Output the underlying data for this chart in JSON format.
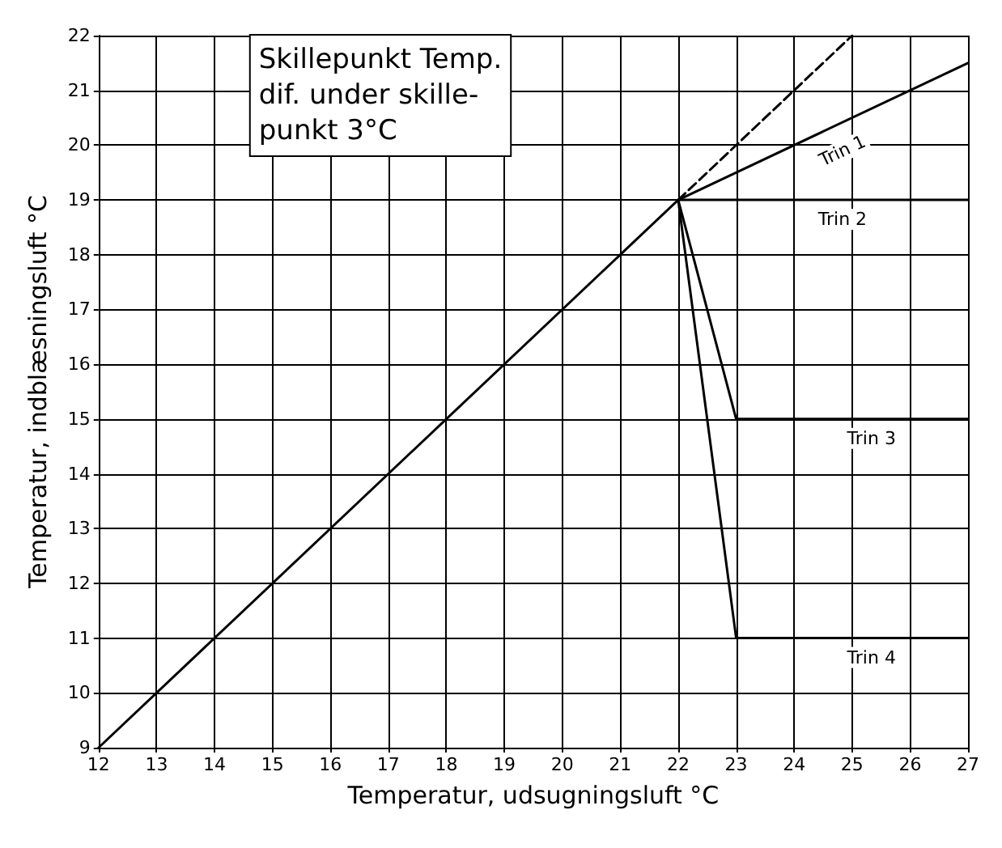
{
  "chart_data": {
    "type": "line",
    "xlabel": "Temperatur, udsugningsluft °C",
    "ylabel": "Temperatur, indblæsningsluft °C",
    "xlim": [
      12,
      27
    ],
    "xticks": [
      12,
      13,
      14,
      15,
      16,
      17,
      18,
      19,
      20,
      21,
      22,
      23,
      24,
      25,
      26,
      27
    ],
    "ylim": [
      9,
      22
    ],
    "yticks": [
      9,
      10,
      11,
      12,
      13,
      14,
      15,
      16,
      17,
      18,
      19,
      20,
      21,
      22
    ],
    "grid": true,
    "marker": "none",
    "line_style": "solid",
    "annotations": [
      "Skillepunkt Temp.\ndif. under skille-\npunkt 3°C"
    ],
    "series": [
      {
        "color": "#000000",
        "x": [
          22,
          25
        ],
        "values": [
          19,
          22
        ],
        "line_style": "dashed"
      },
      {
        "name": "Trin 1",
        "color": "#000000",
        "x": [
          12,
          22,
          27
        ],
        "values": [
          9,
          19,
          21.5
        ]
      },
      {
        "name": "Trin 2",
        "color": "#000000",
        "x": [
          22,
          27
        ],
        "values": [
          19,
          19
        ]
      },
      {
        "name": "Trin 3",
        "color": "#000000",
        "x": [
          22,
          23,
          27
        ],
        "values": [
          19,
          15,
          15
        ]
      },
      {
        "name": "Trin 4",
        "color": "#000000",
        "x": [
          22,
          23,
          27
        ],
        "values": [
          19,
          11,
          11
        ]
      }
    ]
  }
}
